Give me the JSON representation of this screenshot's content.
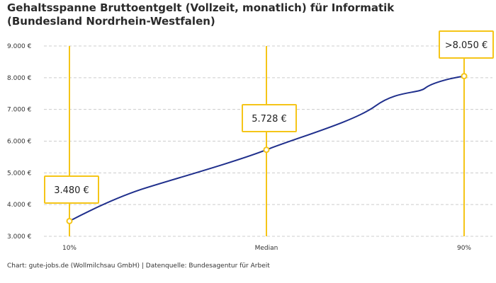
{
  "chart_data": {
    "type": "line",
    "title": "Gehaltsspanne Bruttoentgelt (Vollzeit, monatlich) für Informatik (Bundesland Nordrhein-Westfalen)",
    "categories": [
      "10%",
      "Median",
      "90%"
    ],
    "values": [
      3480,
      5728,
      8050
    ],
    "data_labels": [
      "3.480 €",
      "5.728 €",
      ">8.050 €"
    ],
    "ylim": [
      3000,
      9000
    ],
    "y_ticks": [
      {
        "value": 3000,
        "label": "3.000 €"
      },
      {
        "value": 4000,
        "label": "4.000 €"
      },
      {
        "value": 5000,
        "label": "5.000 €"
      },
      {
        "value": 6000,
        "label": "6.000 €"
      },
      {
        "value": 7000,
        "label": "7.000 €"
      },
      {
        "value": 8000,
        "label": "8.000 €"
      },
      {
        "value": 9000,
        "label": "9.000 €"
      }
    ],
    "grid": true,
    "colors": {
      "line": "#1f2f8c",
      "accent": "#f5c518",
      "grid": "#cccccc"
    }
  },
  "footer": "Chart: gute-jobs.de (Wollmilchsau GmbH) | Datenquelle: Bundesagentur für Arbeit"
}
